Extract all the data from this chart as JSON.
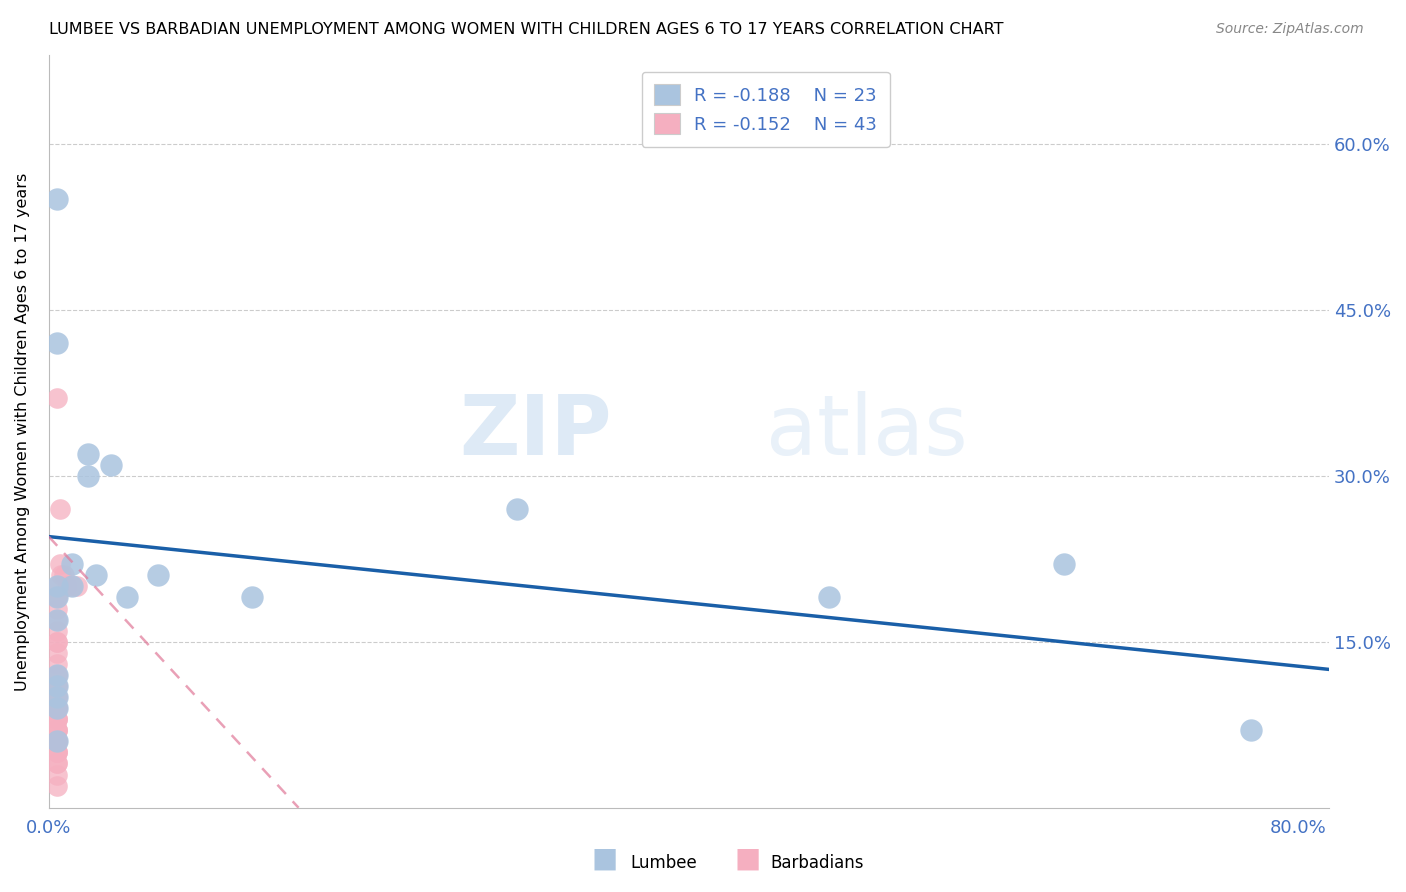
{
  "title": "LUMBEE VS BARBADIAN UNEMPLOYMENT AMONG WOMEN WITH CHILDREN AGES 6 TO 17 YEARS CORRELATION CHART",
  "source": "Source: ZipAtlas.com",
  "legend_lumbee": "Lumbee",
  "legend_barbadian": "Barbadians",
  "ylabel": "Unemployment Among Women with Children Ages 6 to 17 years",
  "lumbee_R": -0.188,
  "lumbee_N": 23,
  "barbadian_R": -0.152,
  "barbadian_N": 43,
  "lumbee_color": "#aac4df",
  "lumbee_edge_color": "#7badd4",
  "lumbee_line_color": "#1a5fa8",
  "barbadian_color": "#f5afc0",
  "barbadian_edge_color": "#e888a0",
  "barbadian_line_color": "#e07898",
  "watermark_zip": "ZIP",
  "watermark_atlas": "atlas",
  "grid_color": "#cccccc",
  "xlim": [
    0.0,
    0.82
  ],
  "ylim": [
    0.0,
    0.68
  ],
  "xticks": [
    0.0,
    0.8
  ],
  "yticks": [
    0.15,
    0.3,
    0.45,
    0.6
  ],
  "xtick_labels": [
    "0.0%",
    "80.0%"
  ],
  "ytick_labels": [
    "15.0%",
    "30.0%",
    "45.0%",
    "60.0%"
  ],
  "lumbee_trend_x": [
    0.0,
    0.82
  ],
  "lumbee_trend_y": [
    0.245,
    0.125
  ],
  "barbadian_trend_x": [
    0.0,
    0.16
  ],
  "barbadian_trend_y": [
    0.245,
    0.0
  ],
  "lumbee_x": [
    0.025,
    0.04,
    0.025,
    0.015,
    0.03,
    0.015,
    0.05,
    0.07,
    0.13,
    0.3,
    0.5,
    0.65,
    0.77,
    0.005,
    0.005,
    0.005,
    0.005,
    0.005,
    0.005,
    0.005,
    0.005,
    0.005,
    0.005
  ],
  "lumbee_y": [
    0.32,
    0.31,
    0.3,
    0.22,
    0.21,
    0.2,
    0.19,
    0.21,
    0.19,
    0.27,
    0.19,
    0.22,
    0.07,
    0.55,
    0.42,
    0.2,
    0.19,
    0.17,
    0.12,
    0.11,
    0.1,
    0.09,
    0.06
  ],
  "barbadian_x": [
    0.005,
    0.007,
    0.007,
    0.008,
    0.01,
    0.012,
    0.015,
    0.018,
    0.005,
    0.005,
    0.005,
    0.005,
    0.005,
    0.005,
    0.005,
    0.005,
    0.005,
    0.005,
    0.005,
    0.005,
    0.005,
    0.005,
    0.005,
    0.005,
    0.005,
    0.005,
    0.005,
    0.005,
    0.005,
    0.005,
    0.005,
    0.005,
    0.005,
    0.005,
    0.005,
    0.005,
    0.005,
    0.005,
    0.005,
    0.005,
    0.005,
    0.005,
    0.005
  ],
  "barbadian_y": [
    0.37,
    0.27,
    0.22,
    0.21,
    0.21,
    0.2,
    0.2,
    0.2,
    0.2,
    0.19,
    0.19,
    0.18,
    0.17,
    0.16,
    0.15,
    0.15,
    0.14,
    0.13,
    0.12,
    0.12,
    0.11,
    0.11,
    0.1,
    0.1,
    0.09,
    0.09,
    0.09,
    0.08,
    0.08,
    0.08,
    0.07,
    0.07,
    0.07,
    0.06,
    0.06,
    0.06,
    0.05,
    0.05,
    0.05,
    0.04,
    0.04,
    0.03,
    0.02
  ],
  "figsize": [
    14.06,
    8.92
  ],
  "dpi": 100
}
